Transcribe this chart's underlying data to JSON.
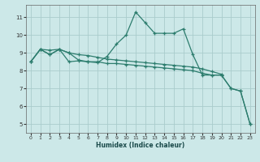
{
  "xlabel": "Humidex (Indice chaleur)",
  "background_color": "#cce8e8",
  "grid_color": "#aacccc",
  "line_color": "#2d7d6e",
  "xlim": [
    -0.5,
    23.5
  ],
  "ylim": [
    4.5,
    11.7
  ],
  "xticks": [
    0,
    1,
    2,
    3,
    4,
    5,
    6,
    7,
    8,
    9,
    10,
    11,
    12,
    13,
    14,
    15,
    16,
    17,
    18,
    19,
    20,
    21,
    22,
    23
  ],
  "yticks": [
    5,
    6,
    7,
    8,
    9,
    10,
    11
  ],
  "line1_x": [
    0,
    1,
    2,
    3,
    4,
    5,
    6,
    7,
    8,
    9,
    10,
    11,
    12,
    13,
    14,
    15,
    16,
    17,
    18,
    19,
    20,
    21,
    22,
    23
  ],
  "line1_y": [
    8.5,
    9.2,
    8.9,
    9.2,
    9.0,
    8.6,
    8.5,
    8.5,
    8.4,
    8.4,
    8.35,
    8.3,
    8.25,
    8.2,
    8.15,
    8.1,
    8.05,
    8.0,
    7.85,
    7.75,
    7.75,
    7.0,
    6.85,
    5.0
  ],
  "line2_x": [
    0,
    1,
    2,
    3,
    4,
    5,
    6,
    7,
    8,
    9,
    10,
    11,
    12,
    13,
    14,
    15,
    16,
    17,
    18,
    19,
    20,
    21,
    22,
    23
  ],
  "line2_y": [
    8.5,
    9.2,
    8.9,
    9.2,
    8.5,
    8.55,
    8.5,
    8.45,
    8.8,
    9.5,
    10.0,
    11.3,
    10.7,
    10.1,
    10.1,
    10.1,
    10.35,
    8.9,
    7.75,
    7.75,
    7.75,
    7.0,
    6.85,
    5.0
  ],
  "line3_x": [
    0,
    1,
    2,
    3,
    4,
    5,
    6,
    7,
    8,
    9,
    10,
    11,
    12,
    13,
    14,
    15,
    16,
    17,
    18,
    19,
    20
  ],
  "line3_y": [
    8.5,
    9.2,
    9.15,
    9.2,
    9.0,
    8.9,
    8.85,
    8.75,
    8.65,
    8.6,
    8.55,
    8.5,
    8.45,
    8.4,
    8.35,
    8.3,
    8.25,
    8.2,
    8.1,
    7.95,
    7.8
  ]
}
